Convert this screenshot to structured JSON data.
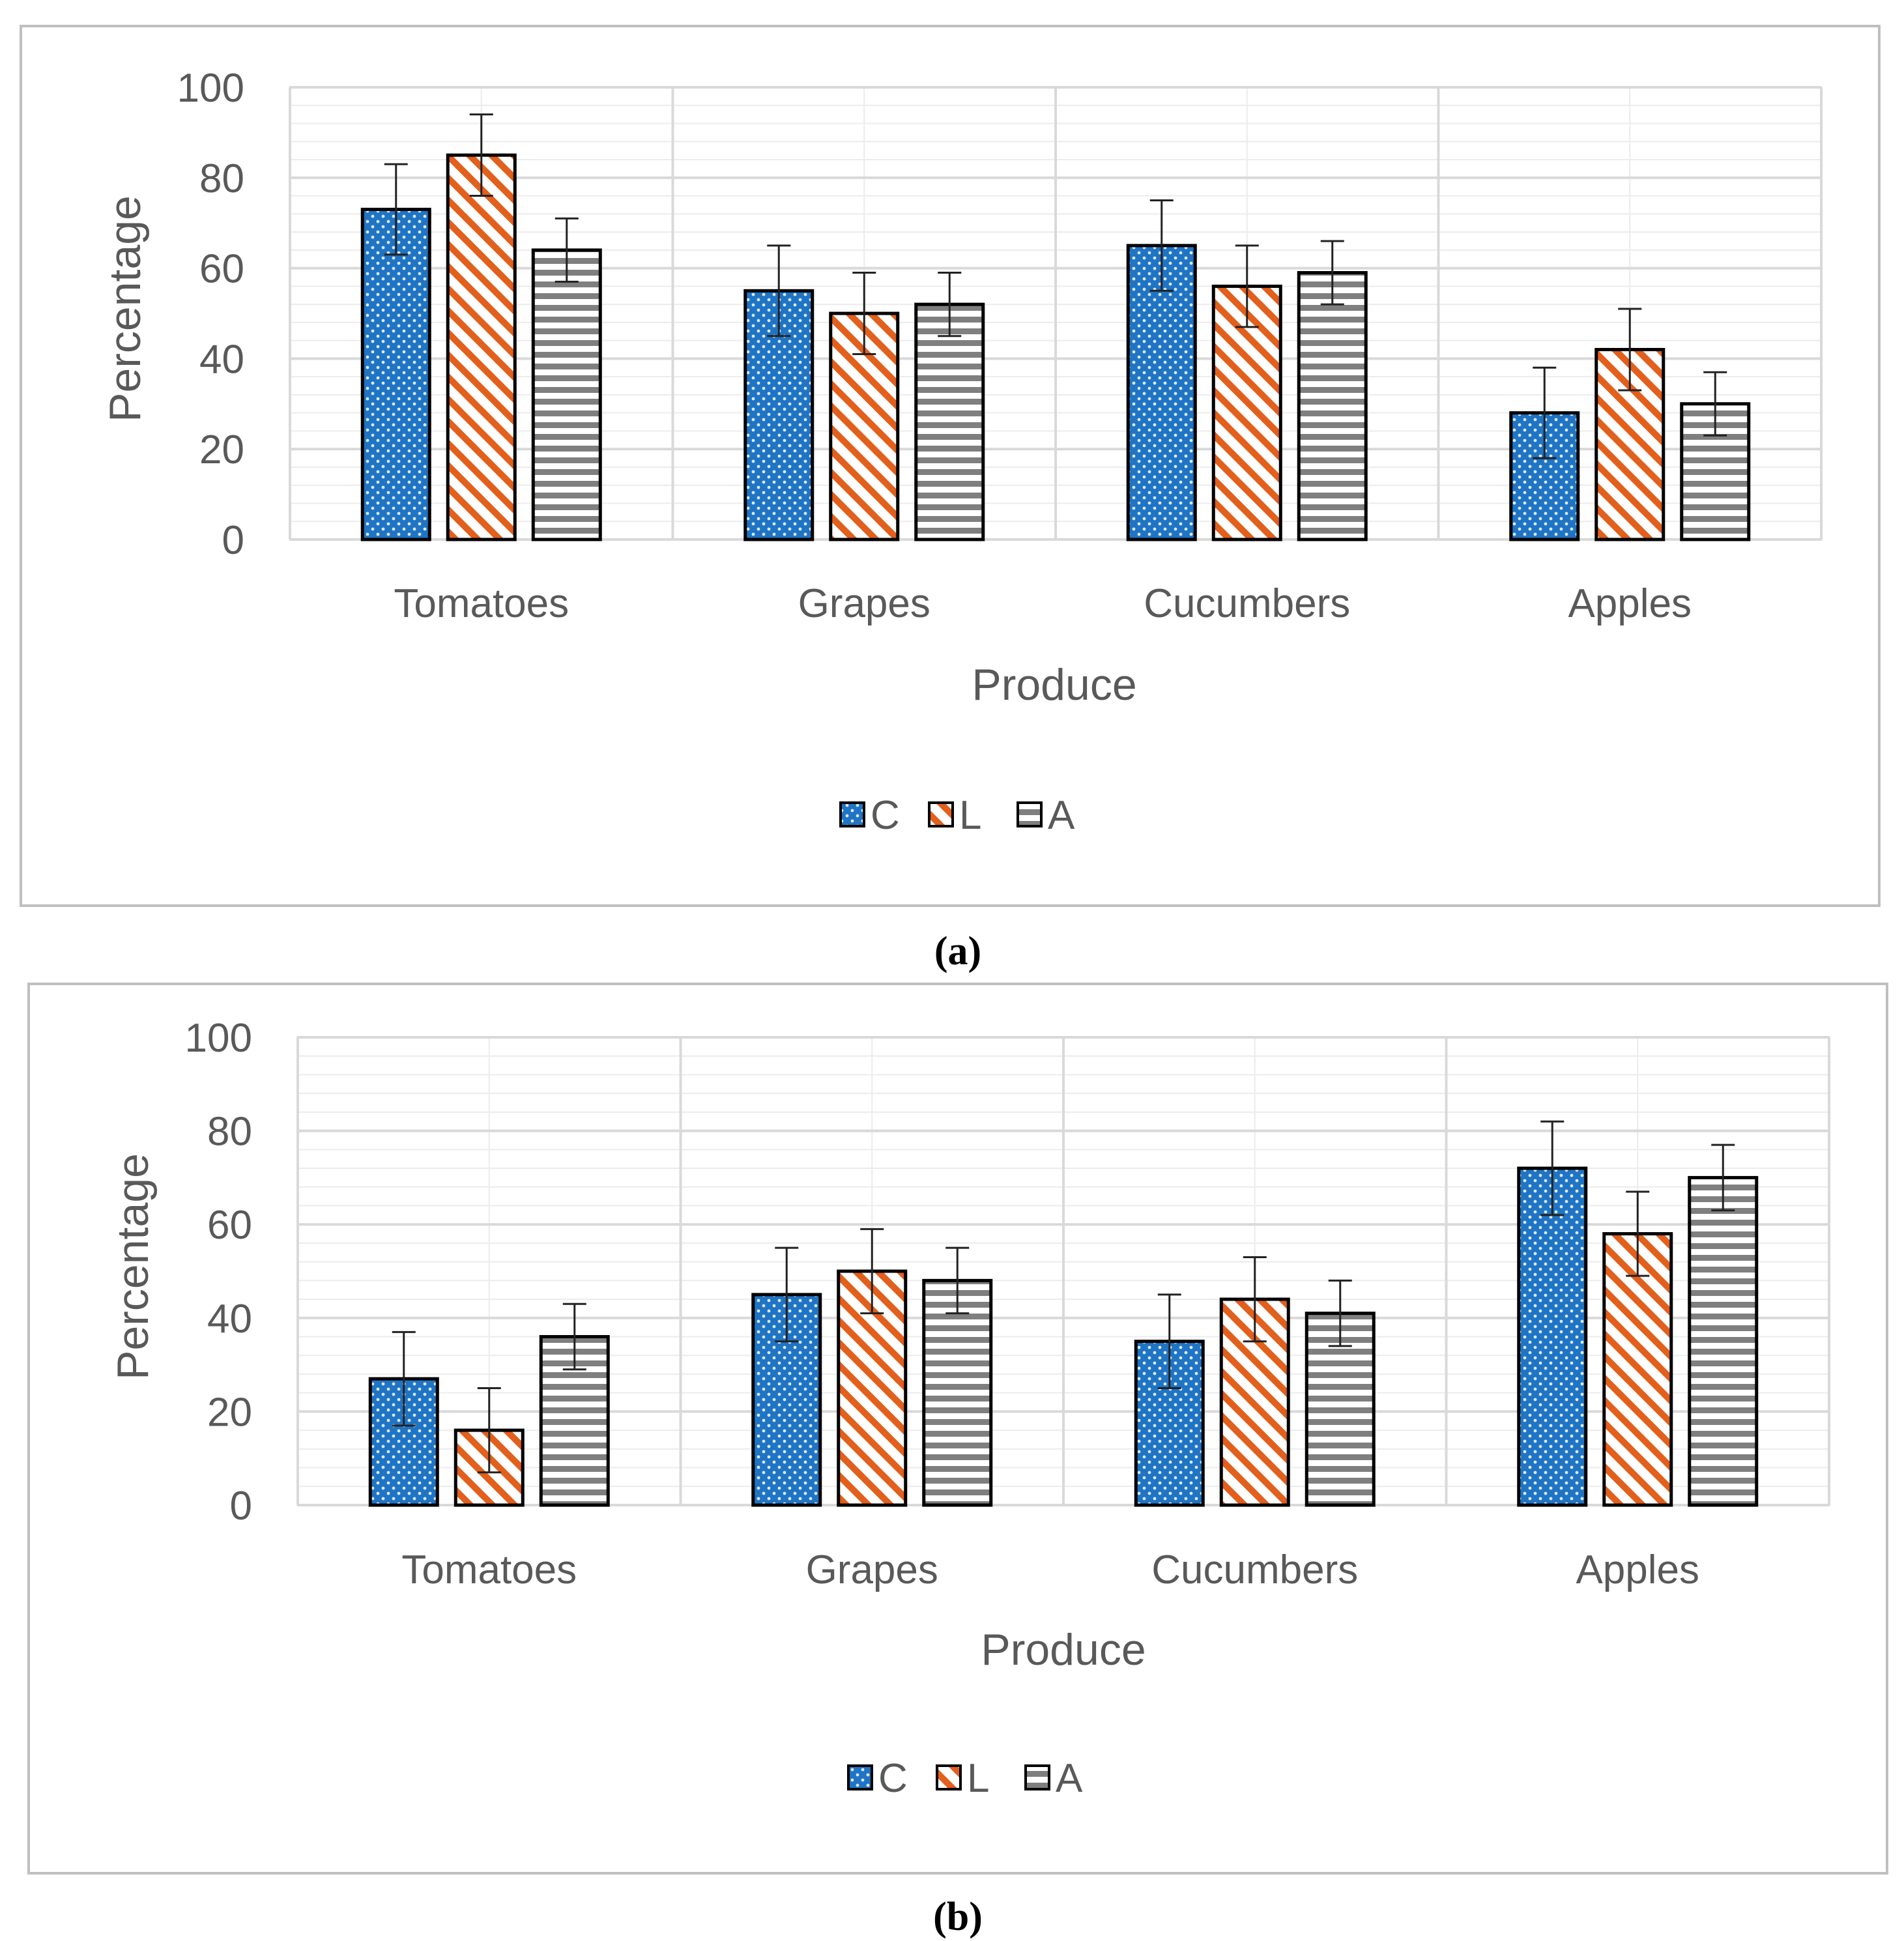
{
  "colors": {
    "C": "#1f74c4",
    "L": "#e35f1c",
    "A": "#7f7f7f",
    "axis_text": "#595959",
    "grid": "#d9d9d9",
    "frame": "#bfbfbf"
  },
  "chart_data": [
    {
      "panel_label": "(a)",
      "panel_letter": "a",
      "type": "bar",
      "xlabel": "Produce",
      "ylabel": "Percentage",
      "ylim": [
        0,
        100
      ],
      "yticks": [
        0,
        20,
        40,
        60,
        80,
        100
      ],
      "grid": true,
      "legend_position": "bottom",
      "categories": [
        "Tomatoes",
        "Grapes",
        "Cucumbers",
        "Apples"
      ],
      "series": [
        {
          "name": "C",
          "pattern": "dots",
          "values": [
            73,
            55,
            65,
            28
          ],
          "error": [
            10,
            10,
            10,
            10
          ]
        },
        {
          "name": "L",
          "pattern": "diagonal-stripes",
          "values": [
            85,
            50,
            56,
            42
          ],
          "error": [
            9,
            9,
            9,
            9
          ]
        },
        {
          "name": "A",
          "pattern": "horizontal-stripes",
          "values": [
            64,
            52,
            59,
            30
          ],
          "error": [
            7,
            7,
            7,
            7
          ]
        }
      ]
    },
    {
      "panel_label": "(b)",
      "panel_letter": "b",
      "type": "bar",
      "xlabel": "Produce",
      "ylabel": "Percentage",
      "ylim": [
        0,
        100
      ],
      "yticks": [
        0,
        20,
        40,
        60,
        80,
        100
      ],
      "grid": true,
      "legend_position": "bottom",
      "categories": [
        "Tomatoes",
        "Grapes",
        "Cucumbers",
        "Apples"
      ],
      "series": [
        {
          "name": "C",
          "pattern": "dots",
          "values": [
            27,
            45,
            35,
            72
          ],
          "error": [
            10,
            10,
            10,
            10
          ]
        },
        {
          "name": "L",
          "pattern": "diagonal-stripes",
          "values": [
            16,
            50,
            44,
            58
          ],
          "error": [
            9,
            9,
            9,
            9
          ]
        },
        {
          "name": "A",
          "pattern": "horizontal-stripes",
          "values": [
            36,
            48,
            41,
            70
          ],
          "error": [
            7,
            7,
            7,
            7
          ]
        }
      ]
    }
  ]
}
